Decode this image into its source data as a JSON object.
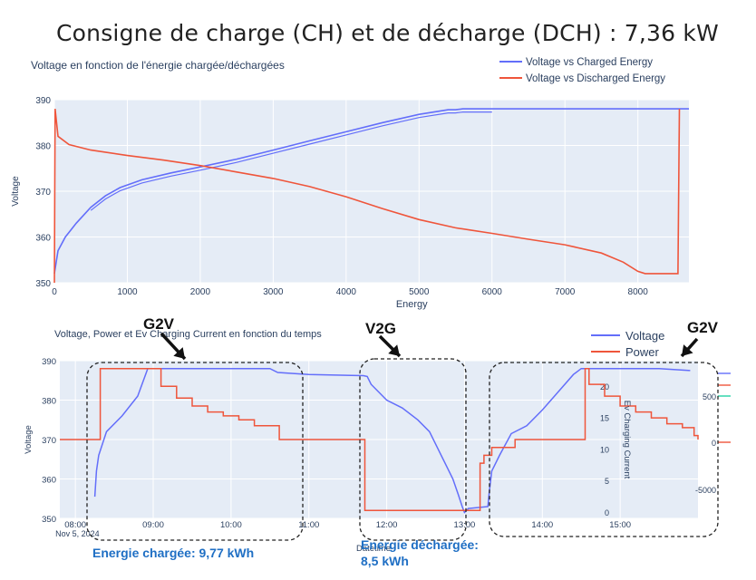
{
  "page_title": "Consigne de charge (CH) et de décharge (DCH) : 7,36 kW",
  "colors": {
    "blue": "#636efa",
    "red": "#ef553b",
    "plot_bg": "#e5ecf6",
    "grid": "#ffffff",
    "axis_text": "#2a3f5f",
    "annotation_blue": "#1f6fc4"
  },
  "chart_data": [
    {
      "type": "line",
      "title": "Voltage en fonction de l'énergie chargée/déchargées",
      "xlabel": "Energy",
      "ylabel": "Voltage",
      "xlim": [
        0,
        8700
      ],
      "ylim": [
        350,
        390
      ],
      "x_ticks": [
        0,
        1000,
        2000,
        3000,
        4000,
        5000,
        6000,
        7000,
        8000
      ],
      "y_ticks": [
        350,
        360,
        370,
        380,
        390
      ],
      "legend_position": "top-right",
      "grid": true,
      "series": [
        {
          "name": "Voltage vs Charged Energy",
          "color": "#636efa",
          "x": [
            0,
            50,
            150,
            300,
            500,
            700,
            900,
            1200,
            1600,
            2000,
            2500,
            3000,
            3500,
            4000,
            4500,
            5000,
            5400,
            5500,
            5600,
            6000,
            6500,
            7000,
            7500,
            8000,
            8500,
            8700
          ],
          "y": [
            352,
            357,
            360,
            363,
            366.5,
            369,
            370.8,
            372.5,
            374,
            375.3,
            377,
            379,
            381,
            383,
            385,
            386.8,
            387.8,
            387.8,
            388,
            388,
            388,
            388,
            388,
            388,
            388,
            388
          ]
        },
        {
          "name": "Voltage vs Discharged Energy",
          "color": "#ef553b",
          "x": [
            0,
            10,
            50,
            200,
            500,
            1000,
            1500,
            2000,
            2500,
            3000,
            3500,
            4000,
            4500,
            5000,
            5500,
            6000,
            6500,
            7000,
            7500,
            7800,
            8000,
            8100,
            8300,
            8550,
            8570
          ],
          "y": [
            350,
            388,
            382,
            380.2,
            379,
            377.8,
            376.8,
            375.6,
            374.2,
            372.8,
            371,
            368.8,
            366.2,
            363.8,
            362,
            360.8,
            359.5,
            358.3,
            356.5,
            354.5,
            352.5,
            352,
            352,
            352,
            388
          ]
        }
      ]
    },
    {
      "type": "line",
      "title": "Voltage, Power et Ev Charging Current en fonction du temps",
      "ylabel": "Voltage",
      "y2label": "Ev Charging Current",
      "xlabel": "Datetime",
      "ylim": [
        350,
        390
      ],
      "y2lim": [
        -1,
        24
      ],
      "y_ticks": [
        350,
        360,
        370,
        380,
        390
      ],
      "y2_ticks": [
        0,
        5,
        10,
        15,
        20
      ],
      "y3_ticks": [
        "500",
        "0",
        "-5000"
      ],
      "x_range_hours": [
        7.8,
        16.0
      ],
      "x_ticks": [
        {
          "hour": 8,
          "label": "08:00",
          "sublabel": "Nov 5, 2024"
        },
        {
          "hour": 9,
          "label": "09:00"
        },
        {
          "hour": 10,
          "label": "10:00"
        },
        {
          "hour": 11,
          "label": "11:00"
        },
        {
          "hour": 12,
          "label": "12:00"
        },
        {
          "hour": 13,
          "label": "13:00"
        },
        {
          "hour": 14,
          "label": "14:00"
        },
        {
          "hour": 15,
          "label": "15:00"
        }
      ],
      "legend_position": "top-right",
      "grid": true,
      "series": [
        {
          "name": "Voltage",
          "color": "#636efa",
          "x_hours": [
            8.25,
            8.27,
            8.3,
            8.4,
            8.6,
            8.8,
            8.93,
            9.0,
            10.0,
            10.5,
            10.6,
            11.0,
            11.7,
            11.75,
            11.8,
            12.0,
            12.2,
            12.4,
            12.55,
            12.7,
            12.85,
            12.92,
            12.97,
            13.0,
            13.05,
            13.3,
            13.32,
            13.35,
            13.45,
            13.6,
            13.8,
            14.0,
            14.2,
            14.4,
            14.5,
            15.0,
            15.5,
            15.9
          ],
          "y": [
            355.5,
            362,
            366,
            372,
            376,
            381,
            388,
            388,
            388,
            388,
            387,
            386.5,
            386.2,
            386,
            384,
            380,
            378,
            375,
            372,
            366,
            360,
            356,
            353,
            351.5,
            352.5,
            353,
            357,
            362,
            366,
            371.5,
            373.5,
            377.5,
            382,
            386.5,
            388,
            388,
            388,
            387.5
          ]
        },
        {
          "name": "Power",
          "color": "#ef553b",
          "step": true,
          "x_hours": [
            7.8,
            8.3,
            8.32,
            8.95,
            9.1,
            9.3,
            9.5,
            9.7,
            9.9,
            10.1,
            10.3,
            10.6,
            10.62,
            11.7,
            11.72,
            13.1,
            13.2,
            13.25,
            13.35,
            13.6,
            13.65,
            14.55,
            14.6,
            14.8,
            15.0,
            15.2,
            15.4,
            15.6,
            15.8,
            15.95,
            16.0
          ],
          "y": [
            370,
            370,
            388,
            388,
            383.5,
            380.5,
            378.5,
            377,
            376,
            375,
            373.5,
            373.5,
            370,
            370,
            352,
            352,
            364,
            366,
            368,
            368,
            370,
            388,
            384,
            381,
            378.5,
            377,
            375.5,
            374,
            373,
            371,
            370
          ]
        }
      ],
      "annotations": [
        {
          "label": "G2V"
        },
        {
          "label": "V2G"
        },
        {
          "label": "G2V"
        },
        {
          "label": "Energie chargée: 9,77 kWh"
        },
        {
          "label": "Energie déchargée:"
        },
        {
          "label": "8,5 kWh"
        }
      ]
    }
  ]
}
